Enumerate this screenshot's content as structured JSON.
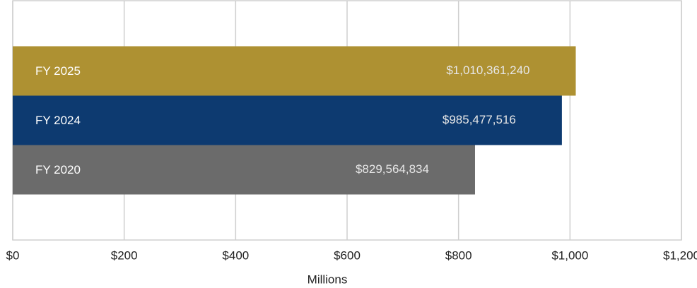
{
  "chart_data": {
    "type": "hbar",
    "categories": [
      "FY 2025",
      "FY 2024",
      "FY 2020"
    ],
    "values": [
      1010.36124,
      985.477516,
      829.564834
    ],
    "value_labels": [
      "$1,010,361,240",
      "$985,477,516",
      "$829,564,834"
    ],
    "colors": [
      "#ae9132",
      "#0d3a70",
      "#6b6b6b"
    ],
    "xlabel": "Millions",
    "xlim": [
      0,
      1200
    ],
    "xticks": [
      {
        "value": 0,
        "label": "$0"
      },
      {
        "value": 200,
        "label": "$200"
      },
      {
        "value": 400,
        "label": "$400"
      },
      {
        "value": 600,
        "label": "$600"
      },
      {
        "value": 800,
        "label": "$800"
      },
      {
        "value": 1000,
        "label": "$1,000"
      },
      {
        "value": 1200,
        "label": "$1,200"
      }
    ],
    "grid": true
  }
}
